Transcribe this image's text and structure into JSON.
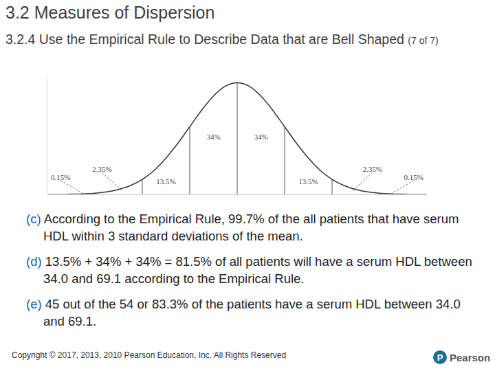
{
  "header": {
    "title": "3.2 Measures of Dispersion",
    "subtitle": "3.2.4 Use the Empirical Rule to Describe Data that are Bell Shaped",
    "part": "(7 of 7)"
  },
  "chart_data": {
    "type": "line",
    "x": [
      -4,
      -3.75,
      -3.5,
      -3.25,
      -3,
      -2.75,
      -2.5,
      -2.25,
      -2,
      -1.75,
      -1.5,
      -1.25,
      -1,
      -0.75,
      -0.5,
      -0.25,
      0,
      0.25,
      0.5,
      0.75,
      1,
      1.25,
      1.5,
      1.75,
      2,
      2.25,
      2.5,
      2.75,
      3,
      3.25,
      3.5,
      3.75,
      4
    ],
    "values": [
      0.0,
      0.0,
      0.001,
      0.002,
      0.004,
      0.009,
      0.018,
      0.032,
      0.054,
      0.086,
      0.13,
      0.183,
      0.242,
      0.301,
      0.352,
      0.387,
      0.399,
      0.387,
      0.352,
      0.301,
      0.242,
      0.183,
      0.13,
      0.086,
      0.054,
      0.032,
      0.018,
      0.009,
      0.004,
      0.002,
      0.001,
      0.0,
      0.0
    ],
    "color": "#333333",
    "xlim": [
      -4,
      4
    ],
    "ylim": [
      0,
      0.42
    ],
    "xticks": [],
    "yticks": [],
    "tick_labels": false,
    "grid": false,
    "boundaries": [
      -3,
      -2,
      -1,
      0,
      1,
      2,
      3
    ],
    "regions": [
      {
        "from": -4,
        "to": -3,
        "value": 0.15,
        "label": "0.15%"
      },
      {
        "from": -3,
        "to": -2,
        "value": 2.35,
        "label": "2.35%"
      },
      {
        "from": -2,
        "to": -1,
        "value": 13.5,
        "label": "13.5%"
      },
      {
        "from": -1,
        "to": 0,
        "value": 34,
        "label": "34%"
      },
      {
        "from": 0,
        "to": 1,
        "value": 34,
        "label": "34%"
      },
      {
        "from": 1,
        "to": 2,
        "value": 13.5,
        "label": "13.5%"
      },
      {
        "from": 2,
        "to": 3,
        "value": 2.35,
        "label": "2.35%"
      },
      {
        "from": 3,
        "to": 4,
        "value": 0.15,
        "label": "0.15%"
      }
    ]
  },
  "items": [
    {
      "label": "(c)",
      "text": "According to the Empirical Rule, 99.7% of the all patients that have serum HDL within 3 standard deviations of the mean."
    },
    {
      "label": "(d)",
      "text": "13.5% + 34% + 34% = 81.5% of all patients will have a serum HDL between 34.0 and 69.1 according to the Empirical Rule."
    },
    {
      "label": "(e)",
      "text": "45 out of the 54 or 83.3% of the patients have a serum HDL between 34.0 and 69.1."
    }
  ],
  "footer": {
    "copyright": "Copyright © 2017, 2013, 2010 Pearson Education, Inc. All Rights Reserved",
    "logo_mark": "P",
    "logo": "Pearson"
  }
}
